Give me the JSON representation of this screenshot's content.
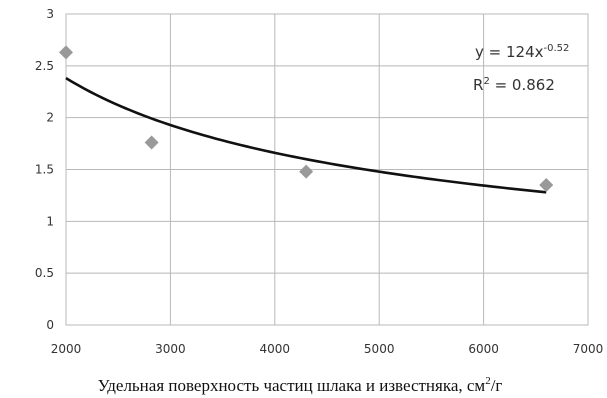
{
  "chart_data": {
    "type": "scatter",
    "title": "",
    "xlabel_main": "Удельная поверхность частиц шлака и известняка, см",
    "xlabel_sup": "2",
    "xlabel_tail": "/г",
    "ylabel": "",
    "xlim": [
      2000,
      7000
    ],
    "ylim": [
      0,
      3
    ],
    "xticks": [
      2000,
      3000,
      4000,
      5000,
      6000,
      7000
    ],
    "yticks": [
      0,
      0.5,
      1,
      1.5,
      2,
      2.5,
      3
    ],
    "ytick_labels": [
      "0",
      "0.5",
      "1",
      "1.5",
      "2",
      "2.5",
      "3"
    ],
    "grid": true,
    "points": {
      "x": [
        2000,
        2820,
        4300,
        6600
      ],
      "y": [
        2.63,
        1.76,
        1.48,
        1.35
      ],
      "color": "#999999",
      "marker": "diamond"
    },
    "trendline": {
      "type": "power",
      "a": 124,
      "b": -0.52,
      "x_range": [
        2000,
        6600
      ],
      "color": "#111111"
    },
    "annotations": {
      "equation_base": "y = 124x",
      "equation_exp": "-0.52",
      "r2_base": "R",
      "r2_sup": "2",
      "r2_tail": " = 0.862"
    }
  }
}
